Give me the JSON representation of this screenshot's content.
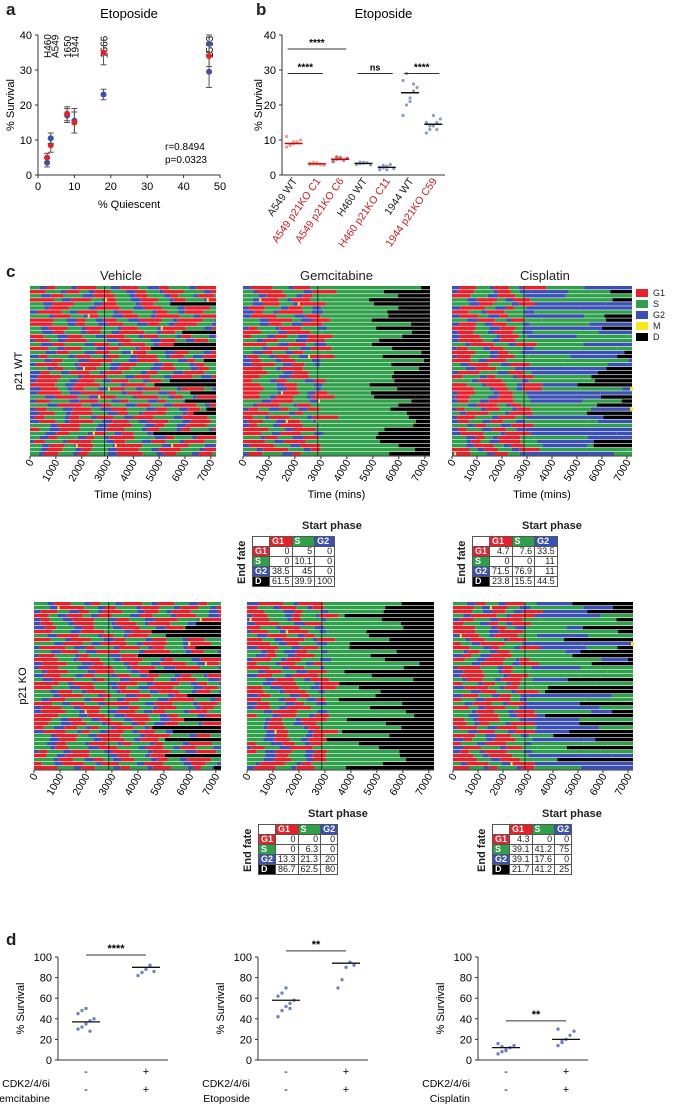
{
  "panel_letters": {
    "a": "a",
    "b": "b",
    "c": "c",
    "d": "d"
  },
  "colors": {
    "G1": "#e8202a",
    "S": "#2fa04a",
    "G2": "#3a50b4",
    "M": "#f2e81c",
    "D": "#000000",
    "red_label": "#d01a1a"
  },
  "legend": [
    {
      "label": "G1",
      "color": "#e8202a"
    },
    {
      "label": "S",
      "color": "#2fa04a"
    },
    {
      "label": "G2",
      "color": "#3a50b4"
    },
    {
      "label": "M",
      "color": "#f2e81c"
    },
    {
      "label": "D",
      "color": "#000000"
    }
  ],
  "chart_data": [
    {
      "id": "a",
      "type": "scatter",
      "title": "Etoposide",
      "xlabel": "% Quiescent",
      "ylabel": "% Survival",
      "xlim": [
        0,
        50
      ],
      "ylim": [
        0,
        40
      ],
      "xticks": [
        "0",
        "10",
        "20",
        "30",
        "40",
        "50"
      ],
      "yticks": [
        "0",
        "10",
        "20",
        "30",
        "40"
      ],
      "cell_line_labels": [
        {
          "label": "H460",
          "x": 2.5,
          "y_top": true
        },
        {
          "label": "A549",
          "x": 4.5,
          "y_top": true
        },
        {
          "label": "1650",
          "x": 8,
          "y_top": true
        },
        {
          "label": "1944",
          "x": 10,
          "y_top": true
        },
        {
          "label": "1666",
          "x": 18,
          "y_top": true
        },
        {
          "label": "1563",
          "x": 47,
          "y_top": true
        }
      ],
      "points": [
        {
          "x": 2.5,
          "y": 3.5,
          "color": "#3a50b4",
          "err": 1.2
        },
        {
          "x": 2.5,
          "y": 5.0,
          "color": "#e8202a",
          "err": 1.2
        },
        {
          "x": 3.5,
          "y": 8.5,
          "color": "#e8202a",
          "err": 2.0
        },
        {
          "x": 3.5,
          "y": 10.5,
          "color": "#3a50b4",
          "err": 1.5
        },
        {
          "x": 8,
          "y": 17.0,
          "color": "#3a50b4",
          "err": 2.0
        },
        {
          "x": 8,
          "y": 17.5,
          "color": "#e8202a",
          "err": 2.0
        },
        {
          "x": 10,
          "y": 15.5,
          "color": "#3a50b4",
          "err": 3.5
        },
        {
          "x": 10,
          "y": 15.0,
          "color": "#e8202a",
          "err": 3.0
        },
        {
          "x": 18,
          "y": 35.0,
          "color": "#e8202a",
          "err": 3.5
        },
        {
          "x": 18,
          "y": 23.0,
          "color": "#3a50b4",
          "err": 1.5
        },
        {
          "x": 47,
          "y": 37.5,
          "color": "#3a50b4",
          "err": 2.5
        },
        {
          "x": 47,
          "y": 29.5,
          "color": "#3a50b4",
          "err": 4.5
        },
        {
          "x": 47,
          "y": 34.0,
          "color": "#e8202a",
          "err": 3.0
        }
      ],
      "stats": [
        "r=0.8494",
        "p=0.0323"
      ]
    },
    {
      "id": "b",
      "type": "scatter",
      "title": "Etoposide",
      "ylabel": "% Survival",
      "ylim": [
        0,
        40
      ],
      "yticks": [
        "0",
        "10",
        "20",
        "30",
        "40"
      ],
      "categories": [
        "A549 WT",
        "A549 p21KO C1",
        "A549 p21KO C6",
        "H460 WT",
        "H460 p21KO C11",
        "1944 WT",
        "1944 p21KO C59"
      ],
      "category_colors": [
        "#222222",
        "#d01a1a",
        "#d01a1a",
        "#222222",
        "#d01a1a",
        "#222222",
        "#d01a1a"
      ],
      "means": [
        9.0,
        3.2,
        4.5,
        3.3,
        2.2,
        23.5,
        14.5
      ],
      "mean_colors": [
        "#e8202a",
        "#e8202a",
        "#e8202a",
        "#3a50b4",
        "#3a50b4",
        "#3a50b4",
        "#3a50b4"
      ],
      "points": [
        [
          8,
          8.5,
          9,
          9.5,
          10,
          11,
          8.5,
          9.5
        ],
        [
          3,
          3.2,
          3.5,
          3.0,
          2.8,
          3.4,
          3.6,
          3.1
        ],
        [
          4,
          4.5,
          5,
          4.2,
          4.8,
          3.8,
          5.2,
          4.6
        ],
        [
          3,
          3.3,
          3.6,
          3.5,
          2.9,
          3.2,
          3.7,
          3.4
        ],
        [
          1.5,
          2,
          2.5,
          3,
          1.8,
          2.2,
          2.8,
          1.5
        ],
        [
          17,
          20,
          22,
          24,
          25,
          27,
          29,
          21,
          26
        ],
        [
          12,
          13,
          14,
          15,
          16,
          15,
          14,
          17,
          13
        ]
      ],
      "point_colors": [
        "#e8a090",
        "#e8a090",
        "#c06a70",
        "#8aa0c8",
        "#8aa0c8",
        "#8aa0c8",
        "#8aa0c8"
      ],
      "significance": [
        {
          "label": "****",
          "from": 0,
          "to": 2,
          "level": 36
        },
        {
          "label": "****",
          "from": 0,
          "to": 1,
          "level": 29
        },
        {
          "label": "ns",
          "from": 3,
          "to": 4,
          "level": 29
        },
        {
          "label": "****",
          "from": 5,
          "to": 6,
          "level": 29
        }
      ]
    }
  ],
  "timeline": {
    "title_vehicle": "Vehicle",
    "title_gemcitabine": "Gemcitabine",
    "title_cisplatin": "Cisplatin",
    "row_wt": "p21 WT",
    "row_ko": "p21 KO",
    "xlabel": "Time (mins)",
    "xticks": [
      "0",
      "1000",
      "2000",
      "3000",
      "4000",
      "5000",
      "6000",
      "7000"
    ],
    "xmax": 7200,
    "drug_time": 2880
  },
  "fate_tables": [
    {
      "id": "gem_wt",
      "start_phase": "Start phase",
      "end_fate": "End fate",
      "cols": [
        "G1",
        "S",
        "G2"
      ],
      "rows": [
        {
          "label": "G1",
          "values": [
            "0",
            "5",
            "0"
          ]
        },
        {
          "label": "S",
          "values": [
            "0",
            "10.1",
            "0"
          ]
        },
        {
          "label": "G2",
          "values": [
            "38.5",
            "45",
            "0"
          ]
        },
        {
          "label": "D",
          "values": [
            "61.5",
            "39.9",
            "100"
          ]
        }
      ]
    },
    {
      "id": "cis_wt",
      "start_phase": "Start phase",
      "end_fate": "End fate",
      "cols": [
        "G1",
        "S",
        "G2"
      ],
      "rows": [
        {
          "label": "G1",
          "values": [
            "4.7",
            "7.6",
            "33.5"
          ]
        },
        {
          "label": "S",
          "values": [
            "0",
            "0",
            "11"
          ]
        },
        {
          "label": "G2",
          "values": [
            "71.5",
            "76.9",
            "11"
          ]
        },
        {
          "label": "D",
          "values": [
            "23.8",
            "15.5",
            "44.5"
          ]
        }
      ]
    },
    {
      "id": "gem_ko",
      "start_phase": "Start phase",
      "end_fate": "End fate",
      "cols": [
        "G1",
        "S",
        "G2"
      ],
      "rows": [
        {
          "label": "G1",
          "values": [
            "0",
            "0",
            "0"
          ]
        },
        {
          "label": "S",
          "values": [
            "0",
            "6.3",
            "0"
          ]
        },
        {
          "label": "G2",
          "values": [
            "13.3",
            "21.3",
            "20"
          ]
        },
        {
          "label": "D",
          "values": [
            "86.7",
            "62.5",
            "80"
          ]
        }
      ]
    },
    {
      "id": "cis_ko",
      "start_phase": "Start phase",
      "end_fate": "End fate",
      "cols": [
        "G1",
        "S",
        "G2"
      ],
      "rows": [
        {
          "label": "G1",
          "values": [
            "4.3",
            "0",
            "0"
          ]
        },
        {
          "label": "S",
          "values": [
            "39.1",
            "41.2",
            "75"
          ]
        },
        {
          "label": "G2",
          "values": [
            "39.1",
            "17.6",
            "0"
          ]
        },
        {
          "label": "D",
          "values": [
            "21.7",
            "41.2",
            "25"
          ]
        }
      ]
    }
  ],
  "panel_d": [
    {
      "ylabel": "% Survival",
      "ylim": [
        0,
        100
      ],
      "yticks": [
        "0",
        "20",
        "40",
        "60",
        "80",
        "100"
      ],
      "drug": "Gemcitabine",
      "inhibitor": "CDK2/4/6i",
      "signs": [
        [
          "-",
          "+"
        ],
        [
          "-",
          "+"
        ]
      ],
      "significance": "****",
      "groups": [
        {
          "mean": 37,
          "points": [
            30,
            32,
            35,
            38,
            40,
            45,
            48,
            50,
            28
          ]
        },
        {
          "mean": 90,
          "points": [
            82,
            85,
            88,
            92,
            86
          ]
        }
      ]
    },
    {
      "ylabel": "% Survival",
      "ylim": [
        0,
        100
      ],
      "yticks": [
        "0",
        "20",
        "40",
        "60",
        "80",
        "100"
      ],
      "drug": "Etoposide",
      "inhibitor": "CDK2/4/6i",
      "signs": [
        [
          "-",
          "+"
        ],
        [
          "-",
          "+"
        ]
      ],
      "significance": "**",
      "groups": [
        {
          "mean": 58,
          "points": [
            42,
            48,
            52,
            55,
            58,
            62,
            65,
            70,
            50
          ]
        },
        {
          "mean": 94,
          "points": [
            70,
            78,
            90,
            95,
            92
          ]
        }
      ]
    },
    {
      "ylabel": "% Survival",
      "ylim": [
        0,
        100
      ],
      "yticks": [
        "0",
        "20",
        "40",
        "60",
        "80",
        "100"
      ],
      "drug": "Cisplatin",
      "inhibitor": "CDK2/4/6i",
      "signs": [
        [
          "-",
          "+"
        ],
        [
          "-",
          "+"
        ]
      ],
      "significance": "**",
      "groups": [
        {
          "mean": 12,
          "points": [
            6,
            8,
            10,
            12,
            14,
            16,
            13,
            9
          ]
        },
        {
          "mean": 20,
          "points": [
            14,
            17,
            20,
            24,
            28,
            30,
            18
          ]
        }
      ]
    }
  ]
}
